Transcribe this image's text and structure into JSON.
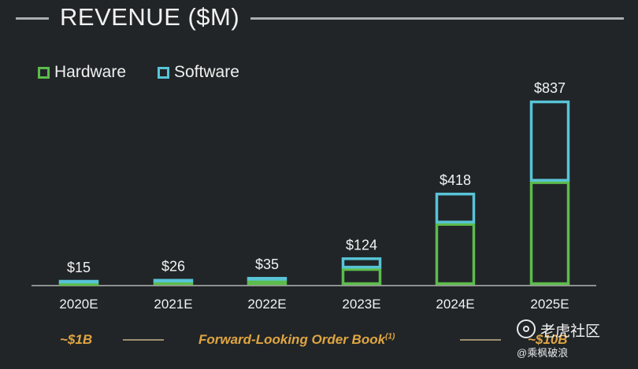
{
  "title": "REVENUE ($M)",
  "legend": [
    {
      "label": "Hardware",
      "color": "#5cbc4b"
    },
    {
      "label": "Software",
      "color": "#58c4d6"
    }
  ],
  "chart_data": {
    "type": "bar",
    "stacked": true,
    "title": "REVENUE ($M)",
    "categories": [
      "2020E",
      "2021E",
      "2022E",
      "2023E",
      "2024E",
      "2025E"
    ],
    "series": [
      {
        "name": "Hardware",
        "color": "#5cbc4b",
        "values": [
          5,
          15,
          20,
          75,
          280,
          470
        ]
      },
      {
        "name": "Software",
        "color": "#58c4d6",
        "values": [
          10,
          11,
          15,
          49,
          138,
          367
        ]
      }
    ],
    "totals": [
      15,
      26,
      35,
      124,
      418,
      837
    ],
    "total_labels": [
      "$15",
      "$26",
      "$35",
      "$124",
      "$418",
      "$837"
    ],
    "ylim": [
      0,
      837
    ],
    "grid": false,
    "legend_position": "top-left"
  },
  "order_book": {
    "left": "~$1B",
    "label": "Forward-Looking Order Book",
    "footnote": "(1)",
    "right": "~$10B"
  },
  "watermark": {
    "name": "老虎社区",
    "user": "@乘枫破浪"
  }
}
